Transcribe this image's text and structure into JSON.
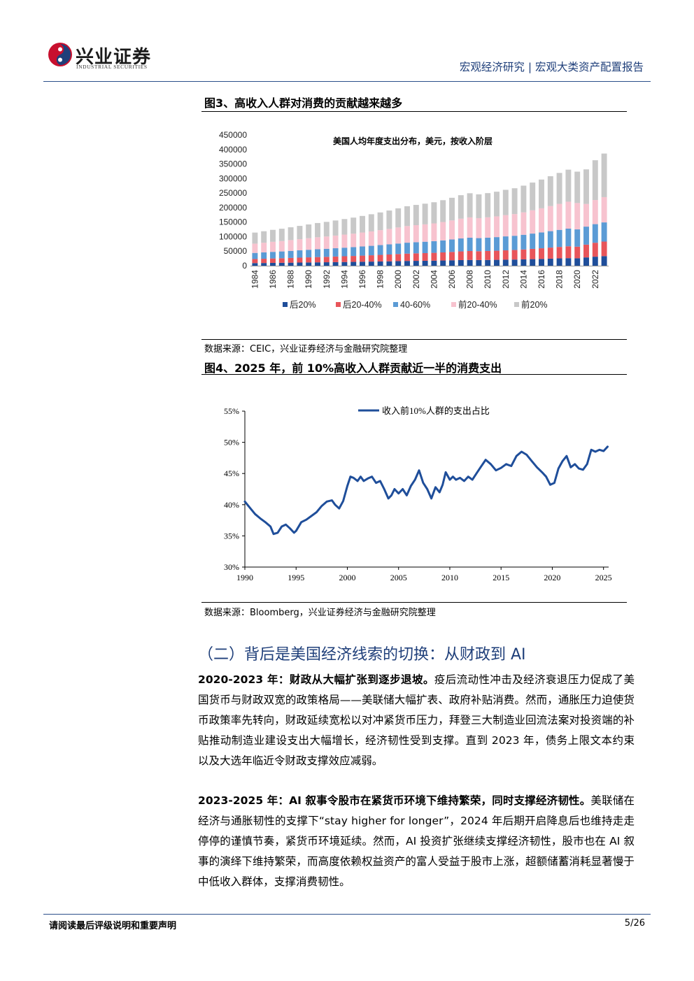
{
  "header": {
    "logo_cn": "兴业证券",
    "logo_en": "INDUSTRIAL SECURITIES",
    "report_type": "宏观经济研究 | 宏观大类资产配置报告"
  },
  "fig3": {
    "title": "图3、高收入人群对消费的贡献越来越多",
    "source": "数据来源：CEIC，兴业证券经济与金融研究院整理",
    "chart_data": {
      "type": "bar",
      "stacked": true,
      "title": "美国人均年度支出分布，美元，按收入阶层",
      "categories": [
        "1984",
        "1985",
        "1986",
        "1987",
        "1988",
        "1989",
        "1990",
        "1991",
        "1992",
        "1993",
        "1994",
        "1995",
        "1996",
        "1997",
        "1998",
        "1999",
        "2000",
        "2001",
        "2002",
        "2003",
        "2004",
        "2005",
        "2006",
        "2007",
        "2008",
        "2009",
        "2010",
        "2011",
        "2012",
        "2013",
        "2014",
        "2015",
        "2016",
        "2017",
        "2018",
        "2019",
        "2020",
        "2021",
        "2022",
        "2023"
      ],
      "x_tick_labels": [
        "1984",
        "1986",
        "1988",
        "1990",
        "1992",
        "1994",
        "1996",
        "1998",
        "2000",
        "2002",
        "2004",
        "2006",
        "2008",
        "2010",
        "2012",
        "2014",
        "2016",
        "2018",
        "2020",
        "2022"
      ],
      "y_ticks": [
        "0",
        "50000",
        "100000",
        "150000",
        "200000",
        "250000",
        "300000",
        "350000",
        "400000",
        "450000"
      ],
      "ylim": [
        0,
        450000
      ],
      "legend": [
        "后20%",
        "后20-40%",
        "40-60%",
        "前20-40%",
        "前20%"
      ],
      "colors": [
        "#1f4e9a",
        "#e8555a",
        "#5b9bd5",
        "#f7c3cf",
        "#c8c8c8"
      ],
      "series": [
        {
          "name": "后20%",
          "values": [
            9000,
            9300,
            9700,
            10000,
            10400,
            10800,
            11200,
            11600,
            11900,
            12300,
            12700,
            13100,
            13600,
            14100,
            14600,
            15100,
            15800,
            16400,
            16700,
            17000,
            17400,
            17900,
            18600,
            19300,
            19800,
            19500,
            19800,
            20200,
            20700,
            21100,
            21800,
            22600,
            23400,
            24300,
            25200,
            26000,
            25500,
            28500,
            31000,
            33000
          ]
        },
        {
          "name": "后20-40%",
          "values": [
            14000,
            14600,
            15200,
            15700,
            16300,
            16900,
            17500,
            18100,
            18600,
            19200,
            19800,
            20400,
            21100,
            21800,
            22600,
            23400,
            24300,
            25200,
            25800,
            26300,
            26900,
            27800,
            28800,
            29900,
            30700,
            30300,
            30800,
            31400,
            32200,
            32900,
            34000,
            35300,
            36600,
            38000,
            39400,
            40800,
            40000,
            44000,
            48000,
            50000
          ]
        },
        {
          "name": "40-60%",
          "values": [
            21000,
            21800,
            22700,
            23400,
            24300,
            25200,
            26100,
            27000,
            27700,
            28600,
            29500,
            30400,
            31500,
            32500,
            33700,
            34900,
            36200,
            37600,
            38400,
            39200,
            40100,
            41400,
            42900,
            44600,
            45800,
            45100,
            45900,
            46800,
            48000,
            49000,
            50600,
            52600,
            54500,
            56600,
            58700,
            60800,
            59500,
            62000,
            64000,
            66000
          ]
        },
        {
          "name": "前20-40%",
          "values": [
            32000,
            33300,
            34600,
            35700,
            37100,
            38400,
            39800,
            41200,
            42300,
            43600,
            45000,
            46400,
            48000,
            49600,
            51400,
            53200,
            55300,
            57300,
            58600,
            59800,
            61200,
            63200,
            65500,
            68000,
            69900,
            68800,
            70000,
            71400,
            73200,
            74700,
            77200,
            80200,
            83100,
            86300,
            89500,
            92700,
            90700,
            78000,
            83000,
            87000
          ]
        },
        {
          "name": "前20%",
          "values": [
            38000,
            39600,
            41200,
            42500,
            44100,
            45700,
            47400,
            49000,
            50300,
            51900,
            53600,
            55200,
            57100,
            59100,
            61100,
            63300,
            65800,
            68200,
            69700,
            71200,
            72800,
            75200,
            78000,
            80900,
            83200,
            81800,
            83300,
            84900,
            87100,
            88900,
            91900,
            95400,
            98900,
            102700,
            106500,
            110200,
            108000,
            119000,
            137000,
            150000
          ]
        }
      ]
    }
  },
  "fig4": {
    "title": "图4、2025 年，前 10%高收入人群贡献近一半的消费支出",
    "source": "数据来源：Bloomberg，兴业证券经济与金融研究院整理",
    "chart_data": {
      "type": "line",
      "legend": [
        "收入前10%人群的支出占比"
      ],
      "x_ticks": [
        "1990",
        "1995",
        "2000",
        "2005",
        "2010",
        "2015",
        "2020",
        "2025"
      ],
      "y_ticks": [
        "30%",
        "35%",
        "40%",
        "45%",
        "50%",
        "55%"
      ],
      "xlim": [
        1990,
        2025.5
      ],
      "ylim": [
        30,
        55
      ],
      "color": "#1f4e9a",
      "series": [
        {
          "name": "收入前10%人群的支出占比",
          "x": [
            1990.0,
            1990.5,
            1991.0,
            1991.5,
            1992.0,
            1992.5,
            1992.8,
            1993.2,
            1993.6,
            1994.0,
            1994.4,
            1994.8,
            1995.0,
            1995.5,
            1996.0,
            1996.5,
            1997.0,
            1997.5,
            1998.0,
            1998.5,
            1998.8,
            1999.2,
            1999.6,
            2000.0,
            2000.3,
            2000.6,
            2001.0,
            2001.3,
            2001.6,
            2002.0,
            2002.4,
            2002.8,
            2003.2,
            2003.6,
            2004.0,
            2004.3,
            2004.6,
            2005.0,
            2005.4,
            2005.8,
            2006.2,
            2006.6,
            2007.0,
            2007.4,
            2007.8,
            2008.2,
            2008.6,
            2009.0,
            2009.3,
            2009.6,
            2010.0,
            2010.3,
            2010.6,
            2011.0,
            2011.4,
            2011.8,
            2012.2,
            2012.6,
            2013.0,
            2013.5,
            2014.0,
            2014.5,
            2015.0,
            2015.5,
            2016.0,
            2016.5,
            2017.0,
            2017.5,
            2018.0,
            2018.5,
            2019.0,
            2019.4,
            2019.8,
            2020.2,
            2020.6,
            2021.0,
            2021.4,
            2021.8,
            2022.2,
            2022.6,
            2023.0,
            2023.4,
            2023.8,
            2024.2,
            2024.6,
            2025.0,
            2025.4
          ],
          "values": [
            40.5,
            39.5,
            38.5,
            37.8,
            37.2,
            36.5,
            35.3,
            35.5,
            36.5,
            36.8,
            36.2,
            35.5,
            35.8,
            37.2,
            37.6,
            38.2,
            38.8,
            39.8,
            40.5,
            40.7,
            40.0,
            39.4,
            40.6,
            43.0,
            44.5,
            44.3,
            43.8,
            44.5,
            43.8,
            44.2,
            44.5,
            43.5,
            43.8,
            42.5,
            41.0,
            41.5,
            42.5,
            41.8,
            42.5,
            41.5,
            43.0,
            44.0,
            45.5,
            43.5,
            42.5,
            41.0,
            42.8,
            42.0,
            43.2,
            45.2,
            44.0,
            44.5,
            44.0,
            44.3,
            43.8,
            44.5,
            44.0,
            45.0,
            46.0,
            47.2,
            46.5,
            45.5,
            45.9,
            46.5,
            46.2,
            47.8,
            48.5,
            48.0,
            47.0,
            46.0,
            45.2,
            44.5,
            43.2,
            43.5,
            45.8,
            47.0,
            47.8,
            46.0,
            46.5,
            45.8,
            45.6,
            46.5,
            48.8,
            48.5,
            48.8,
            48.6,
            49.3
          ]
        }
      ]
    }
  },
  "section": {
    "title": "（二）背后是美国经济线索的切换：从财政到 AI",
    "p1_bold": "2020-2023 年：财政从大幅扩张到逐步退坡。",
    "p1_text": "疫后流动性冲击及经济衰退压力促成了美国货币与财政双宽的政策格局——美联储大幅扩表、政府补贴消费。然而，通胀压力迫使货币政策率先转向，财政延续宽松以对冲紧货币压力，拜登三大制造业回流法案对投资端的补贴推动制造业建设支出大幅增长，经济韧性受到支撑。直到 2023 年，债务上限文本约束以及大选年临近令财政支撑效应减弱。",
    "p2_bold": "2023-2025 年：AI 叙事令股市在紧货币环境下维持繁荣，同时支撑经济韧性。",
    "p2_text": "美联储在经济与通胀韧性的支撑下“stay higher for longer”，2024 年后期开启降息后也维持走走停停的谨慎节奏，紧货币环境延续。然而，AI 投资扩张继续支撑经济韧性，股市也在 AI 叙事的演绎下维持繁荣，而高度依赖权益资产的富人受益于股市上涨，超额储蓄消耗显著慢于中低收入群体，支撑消费韧性。"
  },
  "footer": {
    "disclaimer": "请阅读最后评级说明和重要声明",
    "page": "5/26"
  }
}
